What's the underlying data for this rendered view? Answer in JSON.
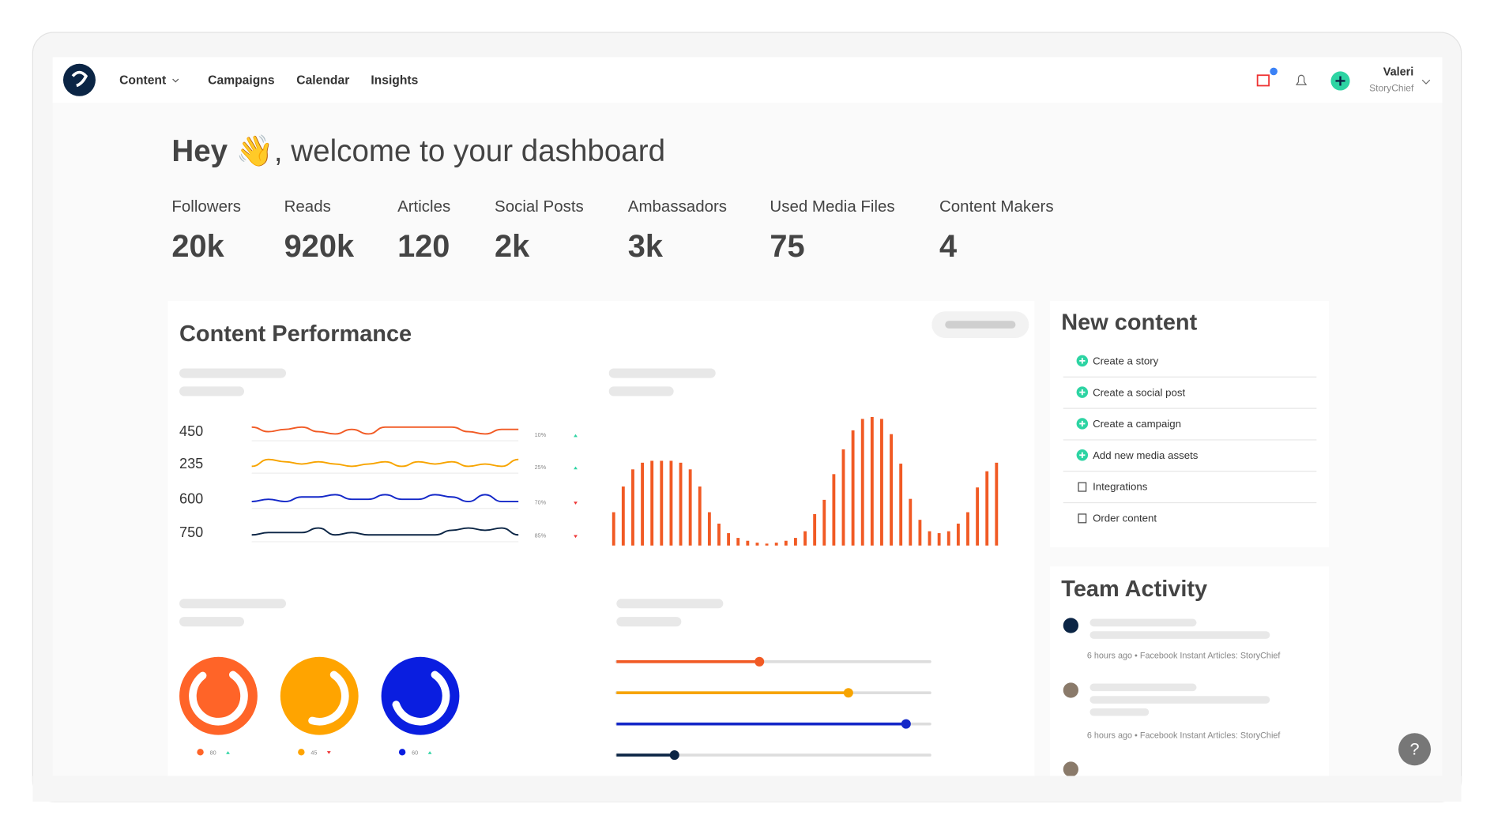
{
  "nav": {
    "items": [
      "Content",
      "Campaigns",
      "Calendar",
      "Insights"
    ],
    "user_name": "Valeri",
    "user_org": "StoryChief"
  },
  "welcome": {
    "greeting": "Hey",
    "message": "👋, welcome to your dashboard"
  },
  "stats": [
    {
      "label": "Followers",
      "value": "20k"
    },
    {
      "label": "Reads",
      "value": "920k"
    },
    {
      "label": "Articles",
      "value": "120"
    },
    {
      "label": "Social Posts",
      "value": "2k"
    },
    {
      "label": "Ambassadors",
      "value": "3k"
    },
    {
      "label": "Used Media Files",
      "value": "75"
    },
    {
      "label": "Content Makers",
      "value": "4"
    }
  ],
  "performance": {
    "title": "Content Performance",
    "rows": [
      {
        "number": "450",
        "percent": "10%",
        "trend": "up",
        "color": "#f15a24",
        "values": [
          6,
          4,
          5,
          6,
          4,
          3,
          5,
          3,
          6,
          6,
          6,
          6,
          6,
          4,
          3,
          5,
          5
        ]
      },
      {
        "number": "235",
        "percent": "25%",
        "trend": "up",
        "color": "#f7a400",
        "values": [
          3,
          6,
          5,
          4,
          5,
          4,
          3,
          4,
          5,
          3,
          5,
          4,
          5,
          3,
          4,
          3,
          6
        ]
      },
      {
        "number": "600",
        "percent": "70%",
        "trend": "down",
        "color": "#1428c8",
        "values": [
          3,
          4,
          3,
          5,
          5,
          6,
          4,
          4,
          6,
          4,
          4,
          6,
          5,
          3,
          6,
          3,
          3
        ]
      },
      {
        "number": "750",
        "percent": "85%",
        "trend": "down",
        "color": "#0b2545",
        "values": [
          3,
          4,
          4,
          4,
          6,
          3,
          4,
          3,
          3,
          3,
          3,
          3,
          5,
          6,
          5,
          6,
          3
        ]
      }
    ],
    "bars": {
      "color": "#f15a24",
      "values": [
        35,
        62,
        80,
        87,
        89,
        89,
        89,
        87,
        80,
        62,
        35,
        23,
        13,
        8,
        5,
        3,
        2,
        3,
        5,
        8,
        15,
        33,
        48,
        75,
        101,
        121,
        133,
        135,
        133,
        117,
        86,
        49,
        27,
        15,
        13,
        15,
        23,
        35,
        61,
        78,
        87
      ]
    },
    "donuts": [
      {
        "value": 80,
        "color": "#ff6428",
        "trend": "up"
      },
      {
        "value": 45,
        "color": "#ffa400",
        "trend": "down"
      },
      {
        "value": 60,
        "color": "#0a1ee0",
        "trend": "up"
      }
    ],
    "sliders": [
      {
        "value": 0.456,
        "color": "#f15a24"
      },
      {
        "value": 0.74,
        "color": "#f7a400"
      },
      {
        "value": 0.924,
        "color": "#1428c8"
      },
      {
        "value": 0.185,
        "color": "#0b2545"
      }
    ]
  },
  "new_content": {
    "title": "New content",
    "items": [
      "Create a story",
      "Create a social post",
      "Create a campaign",
      "Add new media assets",
      "Integrations",
      "Order content"
    ]
  },
  "team_activity": {
    "title": "Team Activity",
    "entries": [
      "6 hours ago • Facebook Instant Articles: StoryChief",
      "6 hours ago • Facebook Instant Articles: StoryChief"
    ]
  },
  "help": "?"
}
